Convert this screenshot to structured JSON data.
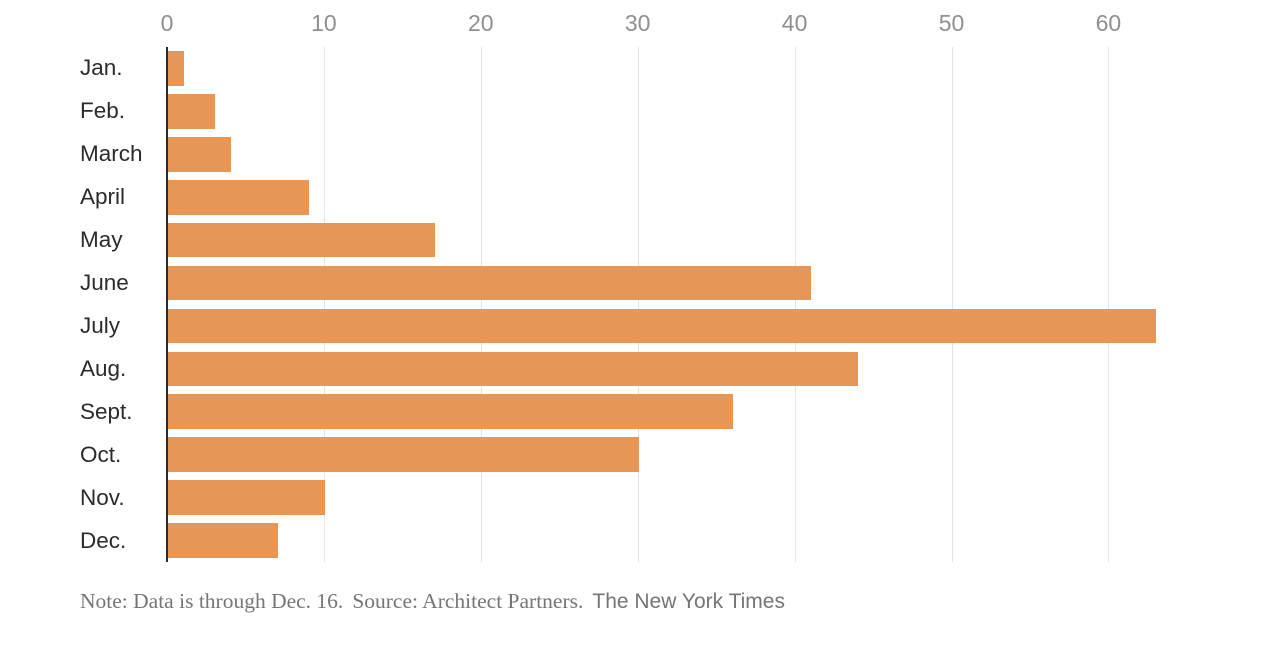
{
  "chart_data": {
    "type": "bar",
    "orientation": "horizontal",
    "title": "",
    "xlabel": "",
    "ylabel": "",
    "categories": [
      "Jan.",
      "Feb.",
      "March",
      "April",
      "May",
      "June",
      "July",
      "Aug.",
      "Sept.",
      "Oct.",
      "Nov.",
      "Dec."
    ],
    "values": [
      1,
      3,
      4,
      9,
      17,
      41,
      63,
      44,
      36,
      30,
      10,
      7
    ],
    "x_ticks": [
      0,
      10,
      20,
      30,
      40,
      50,
      60
    ],
    "xlim": [
      0,
      69.8
    ],
    "grid": "vertical-light-gray",
    "legend": "none",
    "bar_color": "#e79655",
    "axis_line_color": "#2b2b2b",
    "gridline_color": "#e3e3e3",
    "tick_label_color": "#8f8f8f",
    "category_label_color": "#2b2b2b"
  },
  "note": {
    "note_text": "Note: Data is through Dec. 16.",
    "source_text": "Source: Architect Partners.",
    "credit_text": "The New York Times",
    "text_color": "#757575"
  }
}
